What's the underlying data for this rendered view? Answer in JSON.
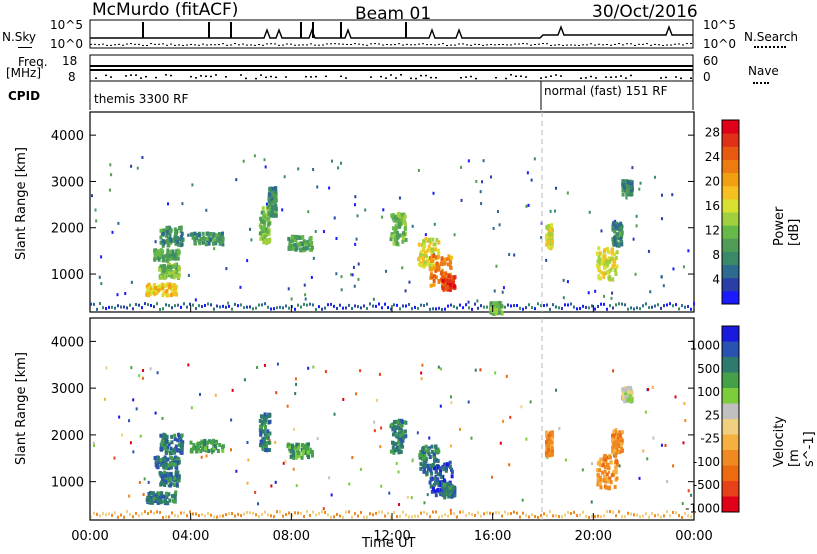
{
  "header": {
    "title": "McMurdo (fitACF)",
    "beam": "Beam 01",
    "date": "30/Oct/2016"
  },
  "top_panel": {
    "nsky_label": "N.Sky",
    "nsky_ticks": [
      "10^5",
      "10^0"
    ],
    "nsearch_label": "N.Search",
    "nsearch_ticks": [
      "10^5",
      "10^0"
    ],
    "freq_label": "Freq.",
    "freq_unit": "[MHz]",
    "freq_ticks": [
      "18",
      "8"
    ],
    "nave_label": "Nave",
    "nave_ticks": [
      "60",
      "0"
    ],
    "cpid_label": "CPID",
    "cpid_segments": [
      "themis 3300 RF",
      "normal (fast) 151 RF"
    ]
  },
  "chart_data": [
    {
      "type": "heatmap",
      "title": "",
      "xlabel": "",
      "ylabel": "Slant Range [km]",
      "x_ticks": [
        "00:00",
        "04:00",
        "08:00",
        "12:00",
        "16:00",
        "20:00",
        "00:00"
      ],
      "y_ticks": [
        "1000",
        "2000",
        "3000",
        "4000"
      ],
      "ylim": [
        180,
        4500
      ],
      "xlim_hours": [
        0,
        24
      ],
      "colorbar": {
        "label": "Power [dB]",
        "ticks": [
          "4",
          "8",
          "12",
          "16",
          "20",
          "24",
          "28"
        ],
        "range": [
          0,
          30
        ],
        "colors": [
          "#1a1aff",
          "#2a3ea8",
          "#2e6a8e",
          "#3a8a6a",
          "#4f9c57",
          "#66b848",
          "#a0d040",
          "#d8e030",
          "#f5c020",
          "#f0a010",
          "#ee7a12",
          "#e85a10",
          "#e03018",
          "#e00018"
        ]
      },
      "patches": [
        {
          "t": 3.2,
          "r": 1850,
          "dt": 0.9,
          "dr": 200,
          "v": 8
        },
        {
          "t": 3.0,
          "r": 1450,
          "dt": 1.0,
          "dr": 120,
          "v": 10
        },
        {
          "t": 3.1,
          "r": 1100,
          "dt": 0.8,
          "dr": 150,
          "v": 12
        },
        {
          "t": 2.8,
          "r": 700,
          "dt": 1.2,
          "dr": 120,
          "v": 18
        },
        {
          "t": 4.6,
          "r": 1800,
          "dt": 1.3,
          "dr": 120,
          "v": 8
        },
        {
          "t": 6.9,
          "r": 2100,
          "dt": 0.4,
          "dr": 400,
          "v": 12
        },
        {
          "t": 7.2,
          "r": 2600,
          "dt": 0.3,
          "dr": 300,
          "v": 8
        },
        {
          "t": 8.3,
          "r": 1700,
          "dt": 1.0,
          "dr": 150,
          "v": 10
        },
        {
          "t": 12.2,
          "r": 2000,
          "dt": 0.6,
          "dr": 350,
          "v": 12
        },
        {
          "t": 13.4,
          "r": 1500,
          "dt": 0.8,
          "dr": 300,
          "v": 16
        },
        {
          "t": 13.9,
          "r": 1100,
          "dt": 0.9,
          "dr": 350,
          "v": 22
        },
        {
          "t": 14.2,
          "r": 850,
          "dt": 0.5,
          "dr": 150,
          "v": 26
        },
        {
          "t": 16.1,
          "r": 300,
          "dt": 0.5,
          "dr": 120,
          "v": 12
        },
        {
          "t": 18.2,
          "r": 1850,
          "dt": 0.25,
          "dr": 250,
          "v": 16
        },
        {
          "t": 20.5,
          "r": 1250,
          "dt": 0.8,
          "dr": 350,
          "v": 16
        },
        {
          "t": 20.9,
          "r": 1900,
          "dt": 0.4,
          "dr": 250,
          "v": 8
        },
        {
          "t": 21.3,
          "r": 2900,
          "dt": 0.4,
          "dr": 150,
          "v": 8
        }
      ]
    },
    {
      "type": "heatmap",
      "title": "",
      "xlabel": "Time UT",
      "ylabel": "Slant Range [km]",
      "x_ticks": [
        "00:00",
        "04:00",
        "08:00",
        "12:00",
        "16:00",
        "20:00",
        "00:00"
      ],
      "y_ticks": [
        "1000",
        "2000",
        "3000",
        "4000"
      ],
      "ylim": [
        180,
        4500
      ],
      "xlim_hours": [
        0,
        24
      ],
      "colorbar": {
        "label": "Velocity [m s^-1]",
        "ticks": [
          "1000",
          "500",
          "100",
          "25",
          "-25",
          "-100",
          "-500",
          "-1000"
        ],
        "colors": [
          "#1a1adf",
          "#2a52b0",
          "#2e7a6e",
          "#45a04a",
          "#7ccc3c",
          "#c0c0c0",
          "#f0d080",
          "#f5b040",
          "#f08a20",
          "#ec6a10",
          "#e84018",
          "#e00018"
        ]
      },
      "patches": [
        {
          "t": 3.2,
          "r": 1850,
          "dt": 0.9,
          "dr": 200,
          "v": 2
        },
        {
          "t": 3.0,
          "r": 1450,
          "dt": 1.0,
          "dr": 120,
          "v": 2
        },
        {
          "t": 3.1,
          "r": 1100,
          "dt": 0.8,
          "dr": 150,
          "v": 2
        },
        {
          "t": 2.8,
          "r": 700,
          "dt": 1.2,
          "dr": 120,
          "v": 2
        },
        {
          "t": 4.6,
          "r": 1800,
          "dt": 1.3,
          "dr": 120,
          "v": 3
        },
        {
          "t": 6.9,
          "r": 2100,
          "dt": 0.4,
          "dr": 400,
          "v": 2
        },
        {
          "t": 8.3,
          "r": 1700,
          "dt": 1.0,
          "dr": 150,
          "v": 3
        },
        {
          "t": 12.2,
          "r": 2000,
          "dt": 0.6,
          "dr": 350,
          "v": 2
        },
        {
          "t": 13.4,
          "r": 1500,
          "dt": 0.8,
          "dr": 300,
          "v": 2
        },
        {
          "t": 13.9,
          "r": 1100,
          "dt": 0.9,
          "dr": 350,
          "v": 1
        },
        {
          "t": 14.2,
          "r": 850,
          "dt": 0.5,
          "dr": 150,
          "v": 2
        },
        {
          "t": 18.2,
          "r": 1850,
          "dt": 0.25,
          "dr": 250,
          "v": 8
        },
        {
          "t": 20.5,
          "r": 1250,
          "dt": 0.8,
          "dr": 350,
          "v": 8
        },
        {
          "t": 20.9,
          "r": 1900,
          "dt": 0.4,
          "dr": 250,
          "v": 8
        },
        {
          "t": 21.3,
          "r": 2900,
          "dt": 0.4,
          "dr": 150,
          "v": 5
        }
      ]
    }
  ]
}
